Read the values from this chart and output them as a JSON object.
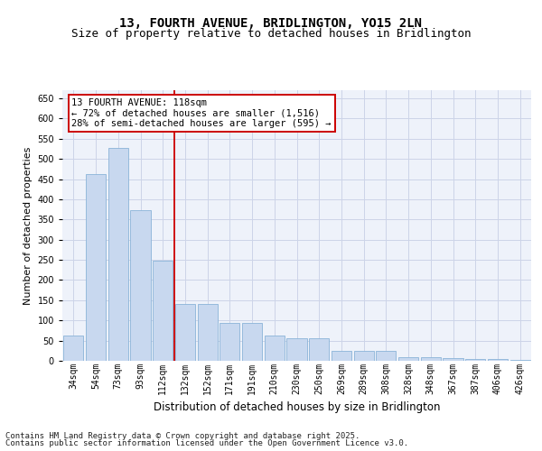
{
  "title": "13, FOURTH AVENUE, BRIDLINGTON, YO15 2LN",
  "subtitle": "Size of property relative to detached houses in Bridlington",
  "xlabel": "Distribution of detached houses by size in Bridlington",
  "ylabel": "Number of detached properties",
  "categories": [
    "34sqm",
    "54sqm",
    "73sqm",
    "93sqm",
    "112sqm",
    "132sqm",
    "152sqm",
    "171sqm",
    "191sqm",
    "210sqm",
    "230sqm",
    "250sqm",
    "269sqm",
    "289sqm",
    "308sqm",
    "328sqm",
    "348sqm",
    "367sqm",
    "387sqm",
    "406sqm",
    "426sqm"
  ],
  "values": [
    62,
    463,
    528,
    372,
    248,
    141,
    141,
    93,
    93,
    62,
    55,
    55,
    25,
    25,
    25,
    10,
    10,
    6,
    5,
    5,
    3
  ],
  "bar_color": "#c8d8ef",
  "bar_edge_color": "#8ab4d8",
  "vline_color": "#cc0000",
  "annotation_text": "13 FOURTH AVENUE: 118sqm\n← 72% of detached houses are smaller (1,516)\n28% of semi-detached houses are larger (595) →",
  "annotation_box_color": "#ffffff",
  "annotation_box_edge_color": "#cc0000",
  "ylim": [
    0,
    670
  ],
  "grid_color": "#ccd4e8",
  "bg_color": "#eef2fa",
  "footer_line1": "Contains HM Land Registry data © Crown copyright and database right 2025.",
  "footer_line2": "Contains public sector information licensed under the Open Government Licence v3.0.",
  "title_fontsize": 10,
  "subtitle_fontsize": 9,
  "xlabel_fontsize": 8.5,
  "ylabel_fontsize": 8,
  "tick_fontsize": 7,
  "annotation_fontsize": 7.5,
  "footer_fontsize": 6.5
}
